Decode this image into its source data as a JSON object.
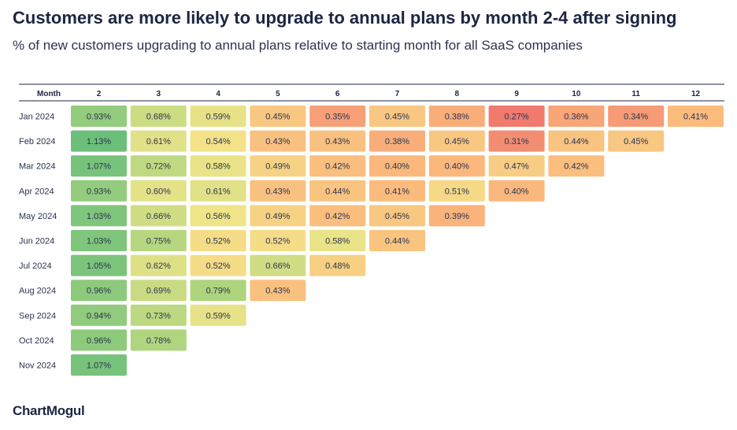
{
  "chart_data": {
    "type": "heatmap",
    "title": "Customers are more likely to upgrade to annual plans by month 2-4 after signing",
    "subtitle": "% of new customers upgrading to annual plans relative to starting month for all SaaS companies",
    "x_header": "Month",
    "columns": [
      "2",
      "3",
      "4",
      "5",
      "6",
      "7",
      "8",
      "9",
      "10",
      "11",
      "12"
    ],
    "rows": [
      "Jan 2024",
      "Feb 2024",
      "Mar 2024",
      "Apr 2024",
      "May 2024",
      "Jun 2024",
      "Jul 2024",
      "Aug 2024",
      "Sep 2024",
      "Oct 2024",
      "Nov 2024"
    ],
    "values": [
      [
        0.93,
        0.68,
        0.59,
        0.45,
        0.35,
        0.45,
        0.38,
        0.27,
        0.36,
        0.34,
        0.41
      ],
      [
        1.13,
        0.61,
        0.54,
        0.43,
        0.43,
        0.38,
        0.45,
        0.31,
        0.44,
        0.45
      ],
      [
        1.07,
        0.72,
        0.58,
        0.49,
        0.42,
        0.4,
        0.4,
        0.47,
        0.42
      ],
      [
        0.93,
        0.6,
        0.61,
        0.43,
        0.44,
        0.41,
        0.51,
        0.4
      ],
      [
        1.03,
        0.66,
        0.56,
        0.49,
        0.42,
        0.45,
        0.39
      ],
      [
        1.03,
        0.75,
        0.52,
        0.52,
        0.58,
        0.44
      ],
      [
        1.05,
        0.62,
        0.52,
        0.66,
        0.48
      ],
      [
        0.96,
        0.69,
        0.79,
        0.43
      ],
      [
        0.94,
        0.73,
        0.59
      ],
      [
        0.96,
        0.78
      ],
      [
        1.07
      ]
    ],
    "labels": [
      [
        "0.93%",
        "0.68%",
        "0.59%",
        "0.45%",
        "0.35%",
        "0.45%",
        "0.38%",
        "0.27%",
        "0.36%",
        "0.34%",
        "0.41%"
      ],
      [
        "1.13%",
        "0.61%",
        "0.54%",
        "0.43%",
        "0.43%",
        "0.38%",
        "0.45%",
        "0.31%",
        "0.44%",
        "0.45%"
      ],
      [
        "1.07%",
        "0.72%",
        "0.58%",
        "0.49%",
        "0.42%",
        "0.40%",
        "0.40%",
        "0.47%",
        "0.42%"
      ],
      [
        "0.93%",
        "0.60%",
        "0.61%",
        "0.43%",
        "0.44%",
        "0.41%",
        "0.51%",
        "0.40%"
      ],
      [
        "1.03%",
        "0.66%",
        "0.56%",
        "0.49%",
        "0.42%",
        "0.45%",
        "0.39%"
      ],
      [
        "1.03%",
        "0.75%",
        "0.52%",
        "0.52%",
        "0.58%",
        "0.44%"
      ],
      [
        "1.05%",
        "0.62%",
        "0.52%",
        "0.66%",
        "0.48%"
      ],
      [
        "0.96%",
        "0.69%",
        "0.79%",
        "0.43%"
      ],
      [
        "0.94%",
        "0.73%",
        "0.59%"
      ],
      [
        "0.96%",
        "0.78%"
      ],
      [
        "1.07%"
      ]
    ],
    "color_scale": {
      "low": "#f07a6e",
      "mid_low": "#fbb87c",
      "mid": "#f3e58a",
      "mid_high": "#b6d77f",
      "high": "#6cbf7a"
    }
  },
  "brand": "ChartMogul"
}
